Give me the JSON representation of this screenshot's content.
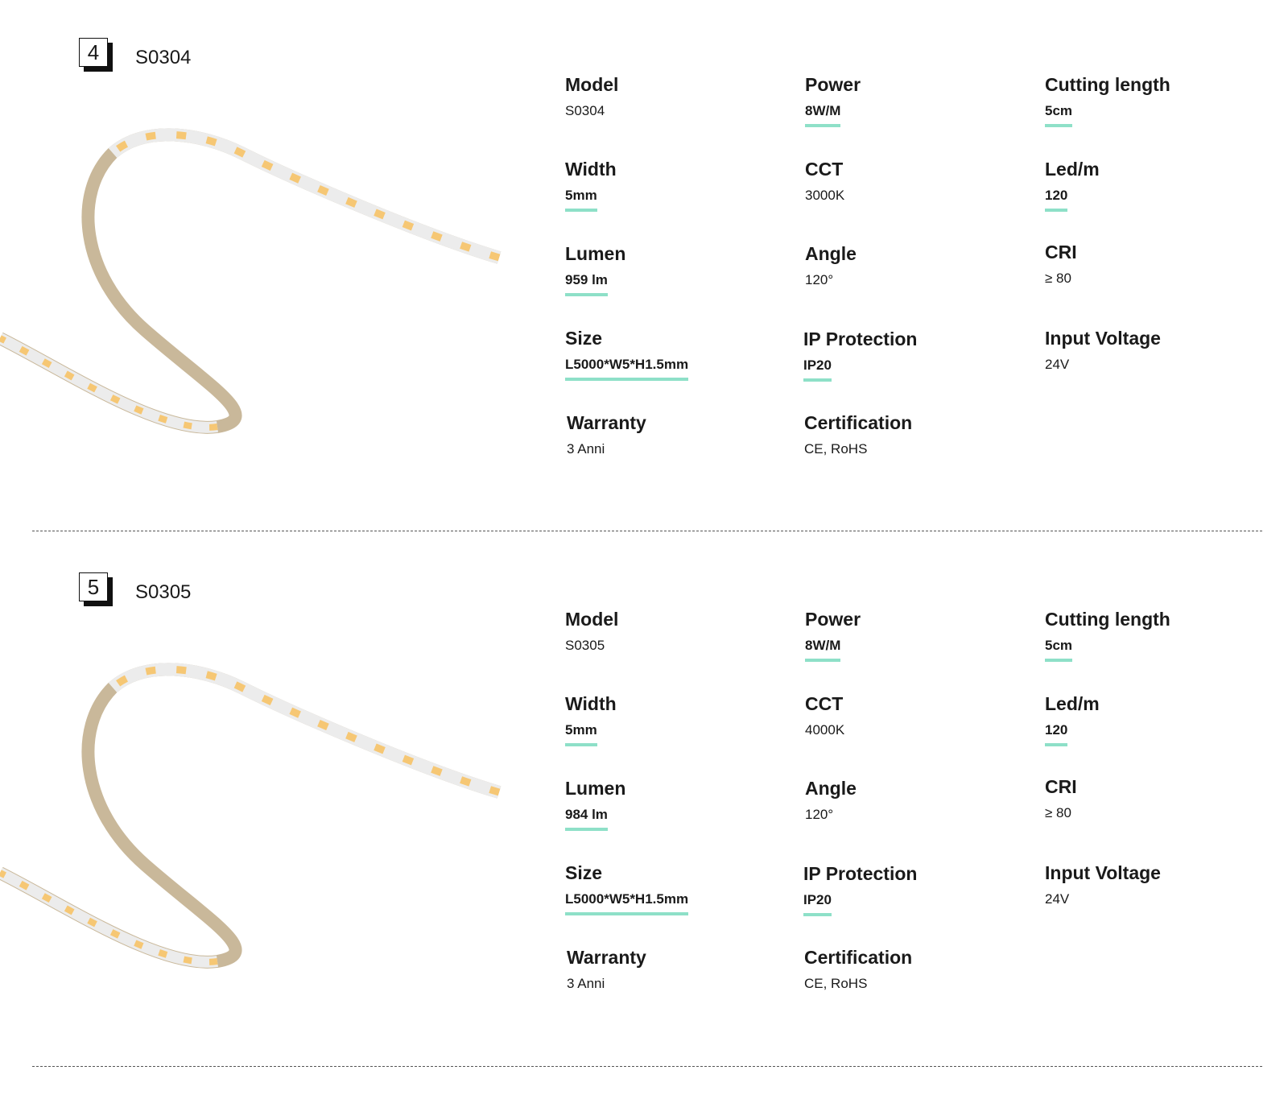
{
  "accent_color": "#8ee0c8",
  "sections": [
    {
      "number": "4",
      "model_title": "S0304",
      "specs": {
        "model": {
          "label": "Model",
          "value": "S0304"
        },
        "power": {
          "label": "Power",
          "value": "8W/M"
        },
        "cutting": {
          "label": "Cutting length",
          "value": "5cm"
        },
        "width": {
          "label": "Width",
          "value": "5mm"
        },
        "cct": {
          "label": "CCT",
          "value": "3000K"
        },
        "led": {
          "label": "Led/m",
          "value": "120"
        },
        "lumen": {
          "label": "Lumen",
          "value": "959 lm"
        },
        "angle": {
          "label": "Angle",
          "value": "120°"
        },
        "cri": {
          "label": "CRI",
          "value": "≥ 80"
        },
        "size": {
          "label": "Size",
          "value": "L5000*W5*H1.5mm"
        },
        "ip": {
          "label": "IP Protection",
          "value": "IP20"
        },
        "voltage": {
          "label": "Input Voltage",
          "value": "24V"
        },
        "warranty": {
          "label": "Warranty",
          "value": "3 Anni"
        },
        "cert": {
          "label": "Certification",
          "value": "CE, RoHS"
        }
      }
    },
    {
      "number": "5",
      "model_title": "S0305",
      "specs": {
        "model": {
          "label": "Model",
          "value": "S0305"
        },
        "power": {
          "label": "Power",
          "value": "8W/M"
        },
        "cutting": {
          "label": "Cutting length",
          "value": "5cm"
        },
        "width": {
          "label": "Width",
          "value": "5mm"
        },
        "cct": {
          "label": "CCT",
          "value": "4000K"
        },
        "led": {
          "label": "Led/m",
          "value": "120"
        },
        "lumen": {
          "label": "Lumen",
          "value": "984 lm"
        },
        "angle": {
          "label": "Angle",
          "value": "120°"
        },
        "cri": {
          "label": "CRI",
          "value": "≥ 80"
        },
        "size": {
          "label": "Size",
          "value": "L5000*W5*H1.5mm"
        },
        "ip": {
          "label": "IP Protection",
          "value": "IP20"
        },
        "voltage": {
          "label": "Input Voltage",
          "value": "24V"
        },
        "warranty": {
          "label": "Warranty",
          "value": "3 Anni"
        },
        "cert": {
          "label": "Certification",
          "value": "CE, RoHS"
        }
      }
    }
  ]
}
